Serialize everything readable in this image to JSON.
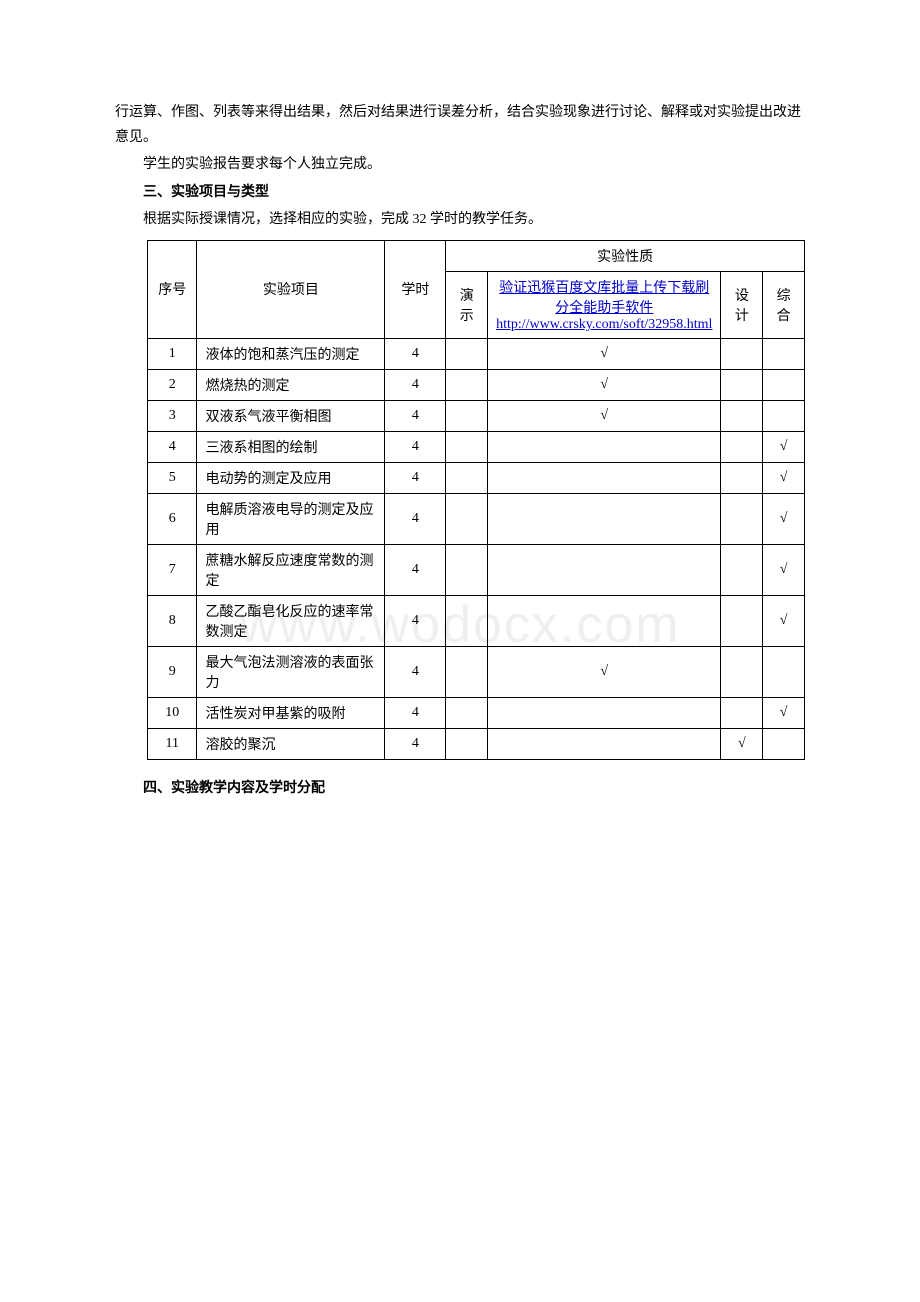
{
  "watermark": "www.wodocx.com",
  "paragraphs": {
    "p1": "行运算、作图、列表等来得出结果，然后对结果进行误差分析，结合实验现象进行讨论、解释或对实验提出改进意见。",
    "p2": "学生的实验报告要求每个人独立完成。",
    "heading3": "三、实验项目与类型",
    "p3": "根据实际授课情况，选择相应的实验，完成 32 学时的教学任务。",
    "heading4": "四、实验教学内容及学时分配"
  },
  "table": {
    "headers": {
      "seq": "序号",
      "project": "实验项目",
      "hours": "学时",
      "nature_group": "实验性质",
      "demo": "演示",
      "link_text": "验证迅猴百度文库批量上传下载刷分全能助手软件http://www.crsky.com/soft/32958.html",
      "design": "设计",
      "comprehensive": "综合"
    },
    "rows": [
      {
        "seq": "1",
        "project": "液体的饱和蒸汽压的测定",
        "hours": "4",
        "demo": "",
        "verify": "√",
        "design": "",
        "comp": ""
      },
      {
        "seq": "2",
        "project": "燃烧热的测定",
        "hours": "4",
        "demo": "",
        "verify": "√",
        "design": "",
        "comp": ""
      },
      {
        "seq": "3",
        "project": "双液系气液平衡相图",
        "hours": "4",
        "demo": "",
        "verify": "√",
        "design": "",
        "comp": ""
      },
      {
        "seq": "4",
        "project": "三液系相图的绘制",
        "hours": "4",
        "demo": "",
        "verify": "",
        "design": "",
        "comp": "√"
      },
      {
        "seq": "5",
        "project": "电动势的测定及应用",
        "hours": "4",
        "demo": "",
        "verify": "",
        "design": "",
        "comp": "√"
      },
      {
        "seq": "6",
        "project": "电解质溶液电导的测定及应用",
        "hours": "4",
        "demo": "",
        "verify": "",
        "design": "",
        "comp": "√"
      },
      {
        "seq": "7",
        "project": "蔗糖水解反应速度常数的测定",
        "hours": "4",
        "demo": "",
        "verify": "",
        "design": "",
        "comp": "√"
      },
      {
        "seq": "8",
        "project": "乙酸乙酯皂化反应的速率常数测定",
        "hours": "4",
        "demo": "",
        "verify": "",
        "design": "",
        "comp": "√"
      },
      {
        "seq": "9",
        "project": "最大气泡法测溶液的表面张力",
        "hours": "4",
        "demo": "",
        "verify": "√",
        "design": "",
        "comp": ""
      },
      {
        "seq": "10",
        "project": "活性炭对甲基紫的吸附",
        "hours": "4",
        "demo": "",
        "verify": "",
        "design": "",
        "comp": "√"
      },
      {
        "seq": "11",
        "project": "溶胶的聚沉",
        "hours": "4",
        "demo": "",
        "verify": "",
        "design": "√",
        "comp": ""
      }
    ]
  }
}
